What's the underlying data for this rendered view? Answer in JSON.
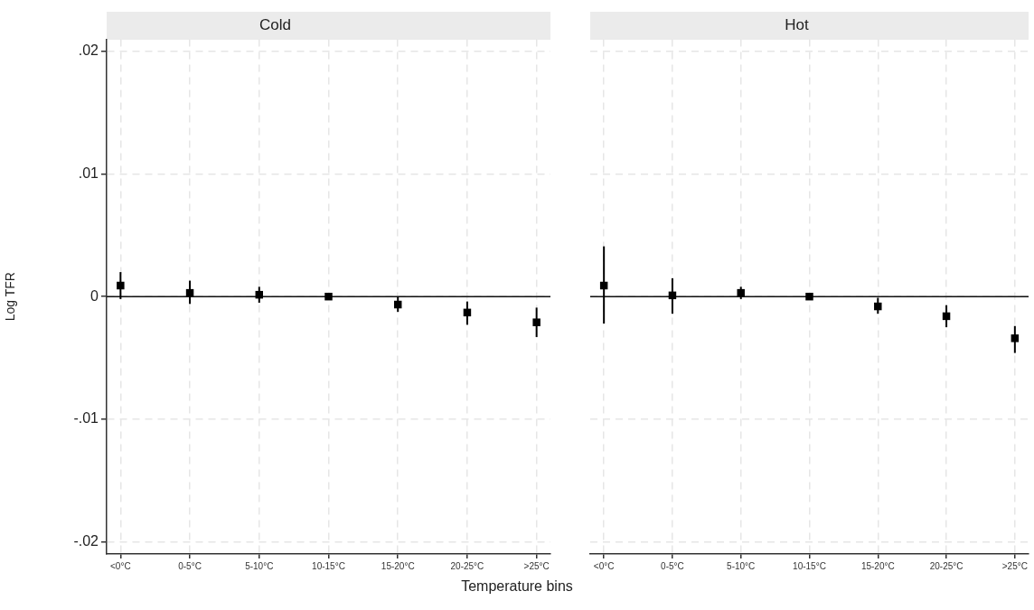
{
  "chart_data": [
    {
      "type": "scatter",
      "title": "Cold",
      "xlabel": "Temperature bins",
      "ylabel": "Log TFR",
      "categories": [
        "<0°C",
        "0-5°C",
        "5-10°C",
        "10-15°C",
        "15-20°C",
        "20-25°C",
        ">25°C"
      ],
      "series": [
        {
          "color": "#000000",
          "values": [
            0.0009,
            0.0003,
            0.00015,
            0,
            -0.00065,
            -0.0013,
            -0.0021
          ],
          "errors": [
            [
              -0.0002,
              0.002
            ],
            [
              -0.0006,
              0.0013
            ],
            [
              -0.0005,
              0.0008
            ],
            null,
            [
              -0.00125,
              0
            ],
            [
              -0.0023,
              -0.0004
            ],
            [
              -0.0033,
              -0.0009
            ]
          ]
        }
      ],
      "ylim": [
        -0.021,
        0.021
      ],
      "yticks": [
        {
          "value": -0.02,
          "label": "-.02"
        },
        {
          "value": -0.01,
          "label": "-.01"
        },
        0,
        {
          "value": 0.01,
          "label": ".01"
        },
        {
          "value": 0.02,
          "label": ".02"
        }
      ],
      "ref_lines": [
        {
          "axis": "y",
          "value": 0
        }
      ],
      "grid": true,
      "marker": "square"
    },
    {
      "type": "scatter",
      "title": "Hot",
      "categories": [
        "<0°C",
        "0-5°C",
        "5-10°C",
        "10-15°C",
        "15-20°C",
        "20-25°C",
        ">25°C"
      ],
      "series": [
        {
          "color": "#000000",
          "values": [
            0.0009,
            0.0001,
            0.0003,
            0,
            -0.0008,
            -0.0016,
            -0.0034
          ],
          "errors": [
            [
              -0.0022,
              0.0041
            ],
            [
              -0.0014,
              0.0015
            ],
            [
              -0.0002,
              0.0008
            ],
            null,
            [
              -0.0014,
              -0.0001
            ],
            [
              -0.0025,
              -0.0007
            ],
            [
              -0.0046,
              -0.0024
            ]
          ]
        }
      ],
      "ylim": [
        -0.021,
        0.021
      ],
      "yticks": [
        -0.02,
        -0.01,
        0,
        0.01,
        0.02
      ],
      "ref_lines": [
        {
          "axis": "y",
          "value": 0
        }
      ],
      "grid": true,
      "marker": "square",
      "tick_labels": "x"
    }
  ]
}
